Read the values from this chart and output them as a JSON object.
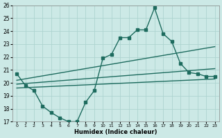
{
  "background_color": "#cce9e6",
  "grid_color": "#add4d0",
  "line_color": "#1d6b5e",
  "xlabel": "Humidex (Indice chaleur)",
  "x_ticks": [
    0,
    1,
    2,
    3,
    4,
    5,
    6,
    7,
    8,
    9,
    10,
    11,
    12,
    13,
    14,
    15,
    16,
    17,
    18,
    19,
    20,
    21,
    22,
    23
  ],
  "ylim": [
    17,
    26
  ],
  "xlim": [
    -0.5,
    23.5
  ],
  "y_ticks": [
    17,
    18,
    19,
    20,
    21,
    22,
    23,
    24,
    25,
    26
  ],
  "line1_x": [
    0,
    1,
    2,
    3,
    4,
    5,
    6,
    7,
    8,
    9,
    10,
    11,
    12,
    13,
    14,
    15,
    16,
    17,
    18,
    19,
    20,
    21,
    22,
    23
  ],
  "line1_y": [
    20.7,
    19.8,
    19.4,
    18.2,
    17.7,
    17.3,
    17.0,
    17.0,
    18.5,
    19.4,
    21.9,
    22.2,
    23.5,
    23.5,
    24.1,
    24.1,
    25.8,
    23.8,
    23.2,
    21.5,
    20.8,
    20.7,
    20.5,
    20.5
  ],
  "line2_x": [
    0,
    23
  ],
  "line2_y": [
    20.2,
    22.8
  ],
  "line3_x": [
    0,
    23
  ],
  "line3_y": [
    19.9,
    21.1
  ],
  "line4_x": [
    0,
    23
  ],
  "line4_y": [
    19.6,
    20.3
  ],
  "marker_size": 2.5,
  "linewidth": 1.0
}
